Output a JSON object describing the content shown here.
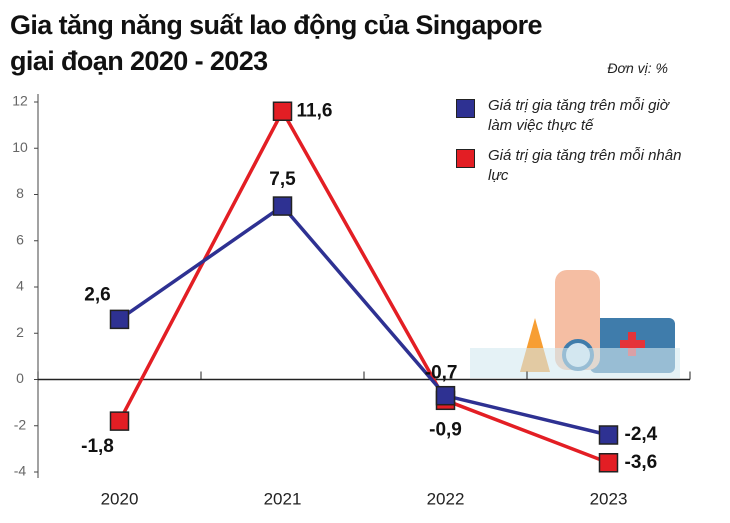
{
  "chart_data": {
    "type": "line",
    "title": [
      "Gia tăng năng suất lao động của Singapore",
      "giai đoạn 2020 - 2023"
    ],
    "unit": "Đơn vị: %",
    "categories": [
      "2020",
      "2021",
      "2022",
      "2023"
    ],
    "series": [
      {
        "name": "Giá trị gia tăng trên mỗi giờ làm việc thực tế",
        "color": "#2e3192",
        "values": [
          2.6,
          7.5,
          -0.7,
          -2.4
        ],
        "value_labels": [
          "2,6",
          "7,5",
          "-0,7",
          "-2,4"
        ]
      },
      {
        "name": "Giá trị gia tăng trên mỗi nhân lực",
        "color": "#e31e24",
        "values": [
          -1.8,
          11.6,
          -0.9,
          -3.6
        ],
        "value_labels": [
          "-1,8",
          "11,6",
          "-0,9",
          "-3,6"
        ]
      }
    ],
    "ylim": [
      -4,
      12
    ],
    "yticks": [
      -4,
      -2,
      0,
      2,
      4,
      6,
      8,
      10,
      12
    ]
  }
}
